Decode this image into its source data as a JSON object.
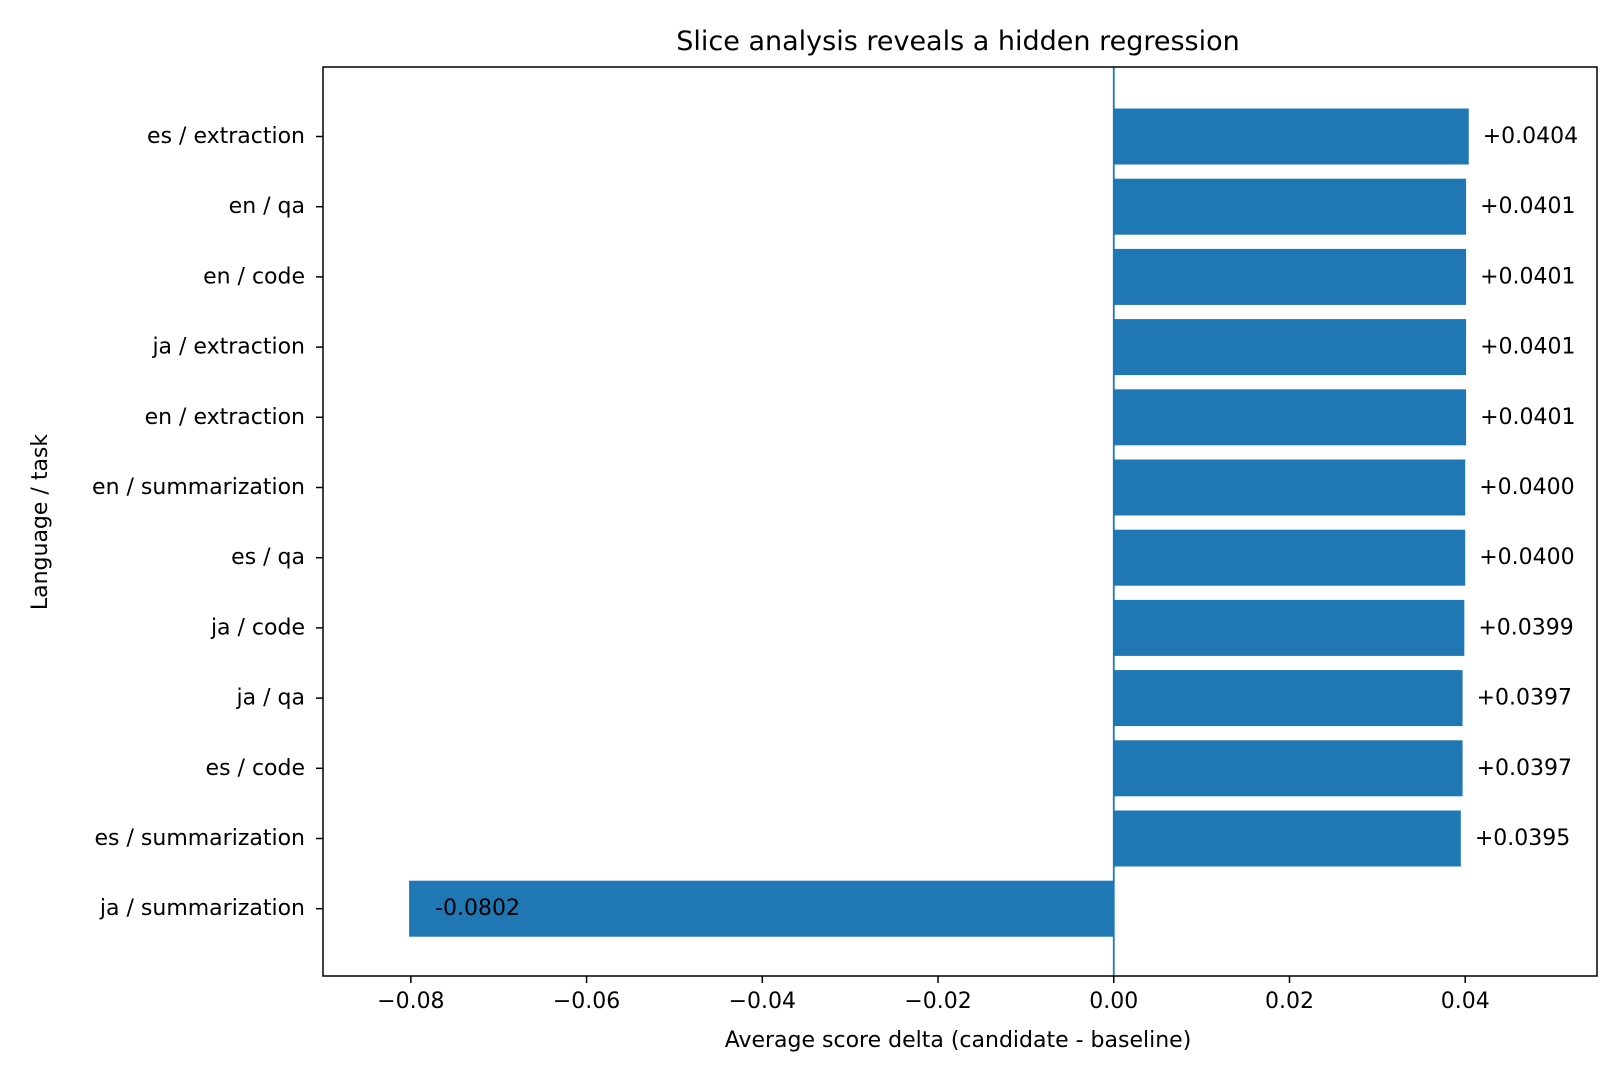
{
  "chart_data": {
    "type": "bar",
    "orientation": "horizontal",
    "title": "Slice analysis reveals a hidden regression",
    "xlabel": "Average score delta (candidate - baseline)",
    "ylabel": "Language / task",
    "xlim": [
      -0.09,
      0.055
    ],
    "xticks": [
      -0.08,
      -0.06,
      -0.04,
      -0.02,
      0.0,
      0.02,
      0.04
    ],
    "xtick_labels": [
      "−0.08",
      "−0.06",
      "−0.04",
      "−0.02",
      "0.00",
      "0.02",
      "0.04"
    ],
    "categories": [
      "es / extraction",
      "en / qa",
      "en / code",
      "ja / extraction",
      "en / extraction",
      "en / summarization",
      "es / qa",
      "ja / code",
      "ja / qa",
      "es / code",
      "es / summarization",
      "ja / summarization"
    ],
    "values": [
      0.0404,
      0.0401,
      0.0401,
      0.0401,
      0.0401,
      0.04,
      0.04,
      0.0399,
      0.0397,
      0.0397,
      0.0395,
      -0.0802
    ],
    "data_labels": [
      "+0.0404",
      "+0.0401",
      "+0.0401",
      "+0.0401",
      "+0.0401",
      "+0.0400",
      "+0.0400",
      "+0.0399",
      "+0.0397",
      "+0.0397",
      "+0.0395",
      "-0.0802"
    ],
    "bar_color": "#1f77b4",
    "reference_line": {
      "x": 0,
      "color": "#1f77b4"
    },
    "grid": false,
    "legend": "none"
  }
}
